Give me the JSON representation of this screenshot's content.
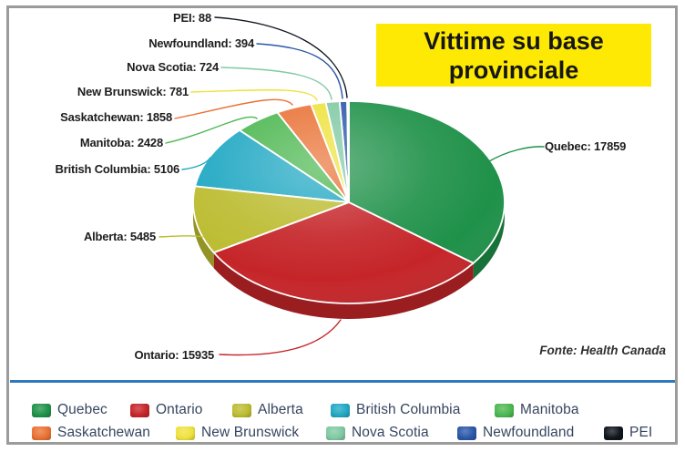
{
  "title": "Vittime su base provinciale",
  "source_note": "Fonte: Health Canada",
  "colors": {
    "title_bg": "#fde903",
    "title_text": "#161616",
    "legend_divider": "#2e78bb",
    "legend_text": "#36465f",
    "callout_text": "#1d1d1d",
    "frame_border": "#9b9b9b",
    "background": "#ffffff"
  },
  "chart_data": {
    "type": "pie",
    "title": "Vittime su base provinciale",
    "style": "3d-exploded-none",
    "start_angle_deg": 0,
    "direction": "clockwise",
    "legend_position": "bottom",
    "callout_format": "{label}: {value}",
    "slices": [
      {
        "label": "Quebec",
        "value": 17859,
        "color": "#1f9149"
      },
      {
        "label": "Ontario",
        "value": 15935,
        "color": "#c52529"
      },
      {
        "label": "Alberta",
        "value": 5485,
        "color": "#bcbc31"
      },
      {
        "label": "British Columbia",
        "value": 5106,
        "color": "#21a8c3"
      },
      {
        "label": "Manitoba",
        "value": 2428,
        "color": "#4cb750"
      },
      {
        "label": "Saskatchewan",
        "value": 1858,
        "color": "#e97134"
      },
      {
        "label": "New Brunswick",
        "value": 781,
        "color": "#eee23c"
      },
      {
        "label": "Nova Scotia",
        "value": 724,
        "color": "#7fc9a3"
      },
      {
        "label": "Newfoundland",
        "value": 394,
        "color": "#2b57a8"
      },
      {
        "label": "PEI",
        "value": 88,
        "color": "#10151d"
      }
    ]
  }
}
